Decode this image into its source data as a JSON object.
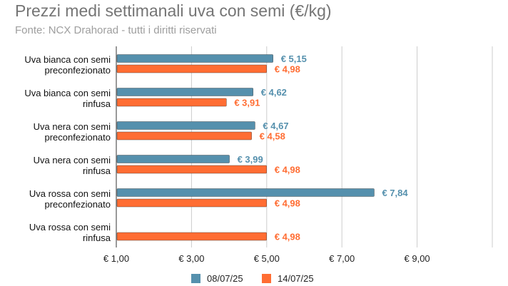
{
  "chart_data": {
    "type": "bar",
    "orientation": "horizontal",
    "title": "Prezzi medi settimanali uva con semi (€/kg)",
    "subtitle": "Fonte: NCX Drahorad - tutti i diritti riservati",
    "categories": [
      [
        "Uva bianca con semi",
        "preconfezionato"
      ],
      [
        "Uva bianca con semi",
        "rinfusa"
      ],
      [
        "Uva nera con semi",
        "preconfezionato"
      ],
      [
        "Uva nera con semi",
        "rinfusa"
      ],
      [
        "Uva rossa con semi",
        "preconfezionato"
      ],
      [
        "Uva rossa con semi",
        "rinfusa"
      ]
    ],
    "series": [
      {
        "name": "08/07/25",
        "color": "#5590ad",
        "values": [
          5.15,
          4.62,
          4.67,
          3.99,
          7.84,
          null
        ],
        "labels": [
          "€ 5,15",
          "€ 4,62",
          "€ 4,67",
          "€ 3,99",
          "€ 7,84",
          null
        ]
      },
      {
        "name": "14/07/25",
        "color": "#ff6d33",
        "values": [
          4.98,
          3.91,
          4.58,
          4.98,
          4.98,
          4.98
        ],
        "labels": [
          "€ 4,98",
          "€ 3,91",
          "€ 4,58",
          "€ 4,98",
          "€ 4,98",
          "€ 4,98"
        ]
      }
    ],
    "xlim": [
      1,
      11
    ],
    "xticks": [
      1,
      3,
      5,
      7,
      9,
      11
    ],
    "xtick_labels": [
      "€ 1,00",
      "€ 3,00",
      "€ 5,00",
      "€ 7,00",
      "€ 9,00",
      ""
    ],
    "grid": true,
    "legend": "bottom"
  }
}
